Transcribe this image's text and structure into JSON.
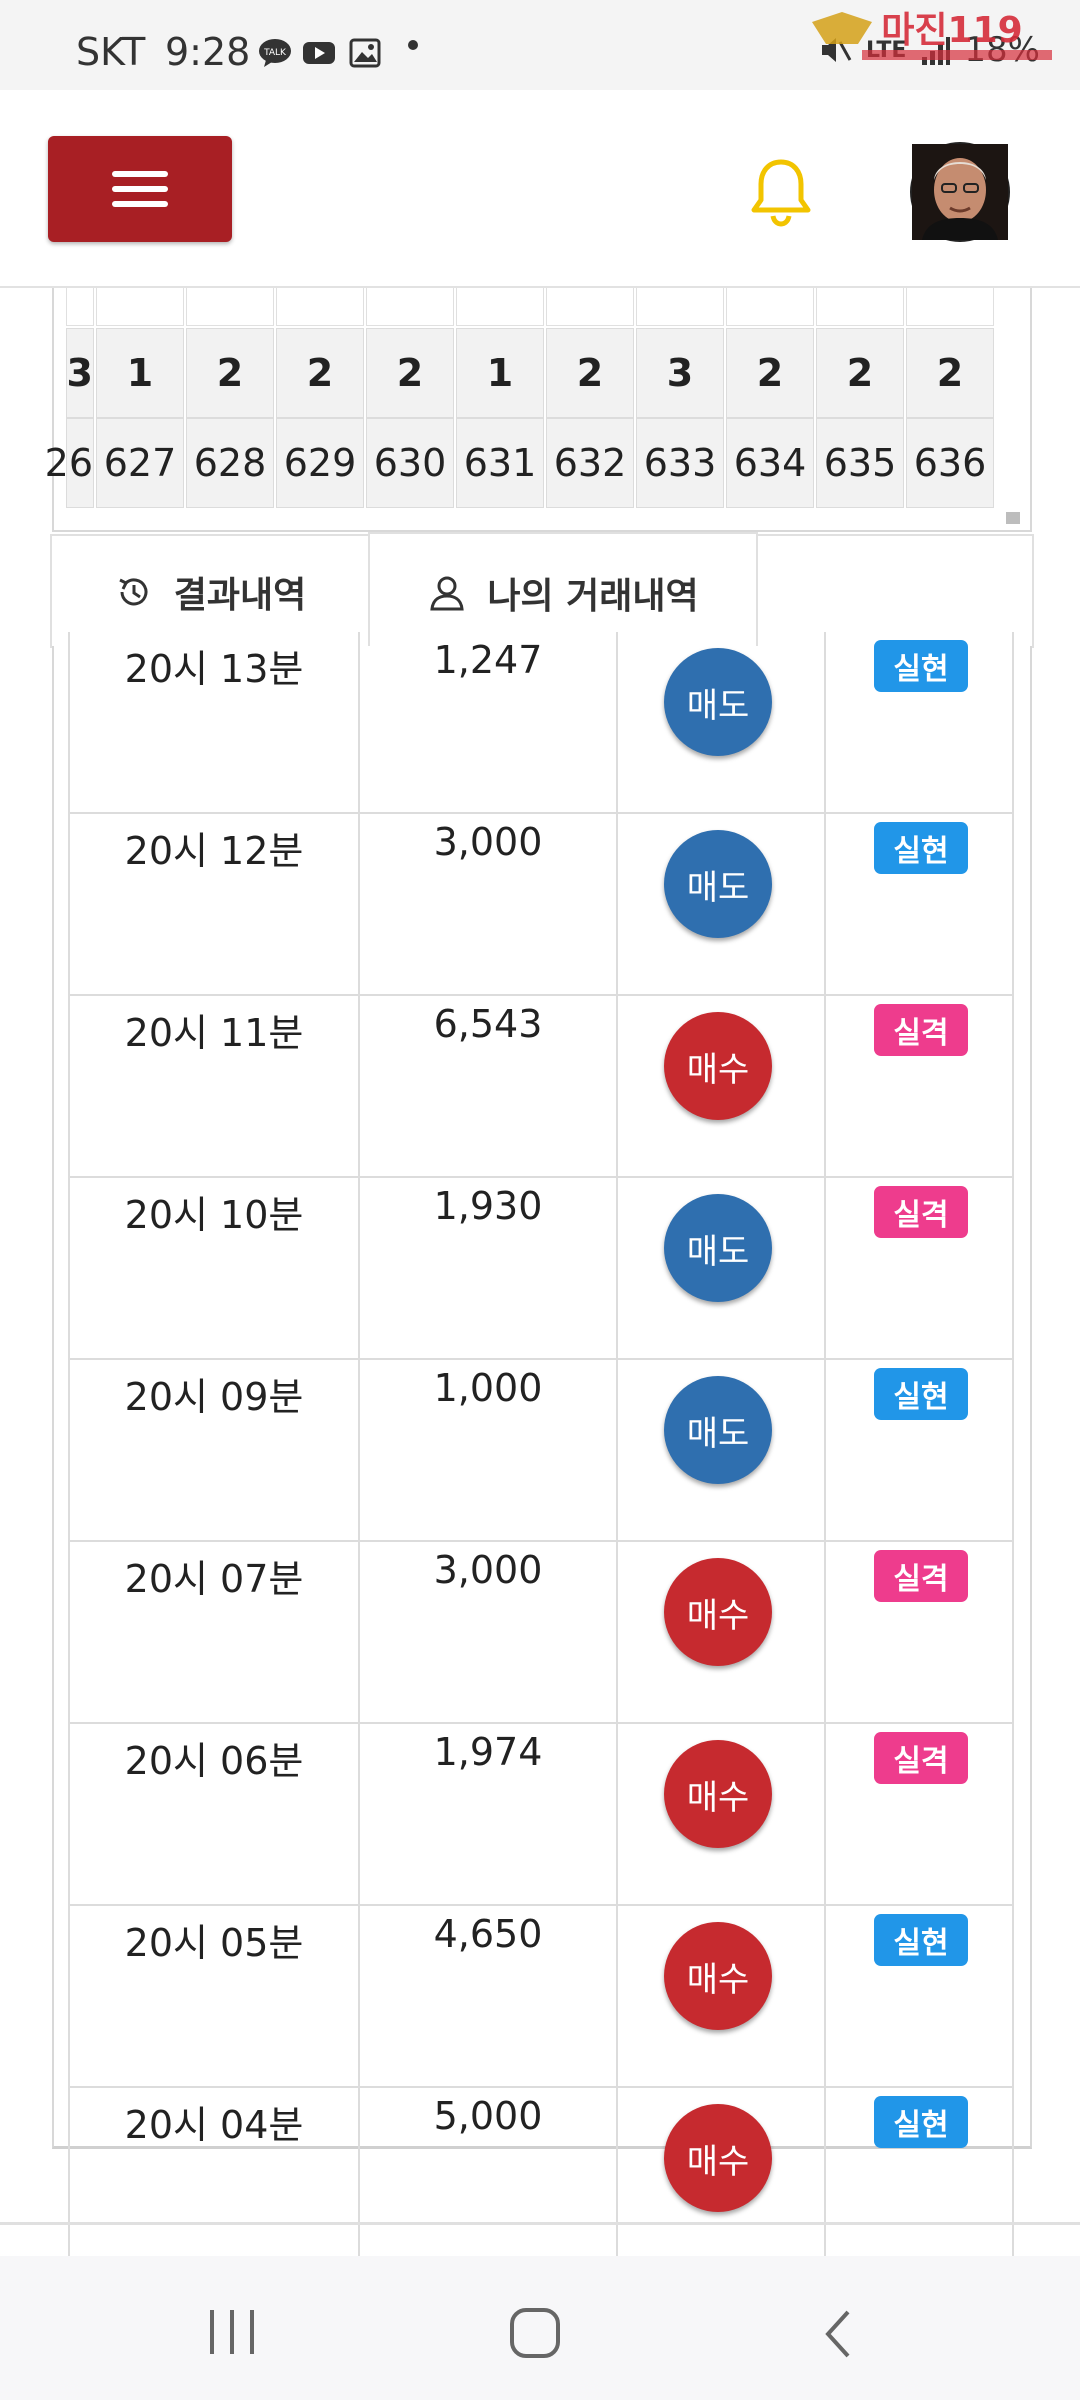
{
  "status": {
    "carrier": "SKT",
    "time": "9:28",
    "network": "LTE",
    "battery": "18%",
    "watermark": "마진119"
  },
  "header": {
    "menu_icon": "hamburger-icon",
    "bell_icon": "bell-icon",
    "bell_color": "#f2c400"
  },
  "strip": {
    "top_values": [
      "3",
      "1",
      "2",
      "2",
      "2",
      "1",
      "2",
      "3",
      "2",
      "2",
      "2"
    ],
    "round_numbers": [
      "26",
      "627",
      "628",
      "629",
      "630",
      "631",
      "632",
      "633",
      "634",
      "635",
      "636"
    ]
  },
  "tabs": [
    {
      "label": "결과내역",
      "icon": "history-icon"
    },
    {
      "label": "나의 거래내역",
      "icon": "user-icon"
    }
  ],
  "trades": [
    {
      "time": "20시 13분",
      "amount": "1,247",
      "type": "매도",
      "kind": "sell",
      "result": "실현",
      "result_kind": "ok"
    },
    {
      "time": "20시 12분",
      "amount": "3,000",
      "type": "매도",
      "kind": "sell",
      "result": "실현",
      "result_kind": "ok"
    },
    {
      "time": "20시 11분",
      "amount": "6,543",
      "type": "매수",
      "kind": "buy",
      "result": "실격",
      "result_kind": "fail"
    },
    {
      "time": "20시 10분",
      "amount": "1,930",
      "type": "매도",
      "kind": "sell",
      "result": "실격",
      "result_kind": "fail"
    },
    {
      "time": "20시 09분",
      "amount": "1,000",
      "type": "매도",
      "kind": "sell",
      "result": "실현",
      "result_kind": "ok"
    },
    {
      "time": "20시 07분",
      "amount": "3,000",
      "type": "매수",
      "kind": "buy",
      "result": "실격",
      "result_kind": "fail"
    },
    {
      "time": "20시 06분",
      "amount": "1,974",
      "type": "매수",
      "kind": "buy",
      "result": "실격",
      "result_kind": "fail"
    },
    {
      "time": "20시 05분",
      "amount": "4,650",
      "type": "매수",
      "kind": "buy",
      "result": "실현",
      "result_kind": "ok"
    },
    {
      "time": "20시 04분",
      "amount": "5,000",
      "type": "매수",
      "kind": "buy",
      "result": "실현",
      "result_kind": "ok"
    }
  ],
  "colors": {
    "sell": "#2f6faf",
    "buy": "#c62a2f",
    "ok": "#2196e8",
    "fail": "#ee3c8d",
    "menu": "#a81f24"
  },
  "navbar": {
    "items": [
      "recent-apps-icon",
      "home-icon",
      "back-icon"
    ]
  }
}
